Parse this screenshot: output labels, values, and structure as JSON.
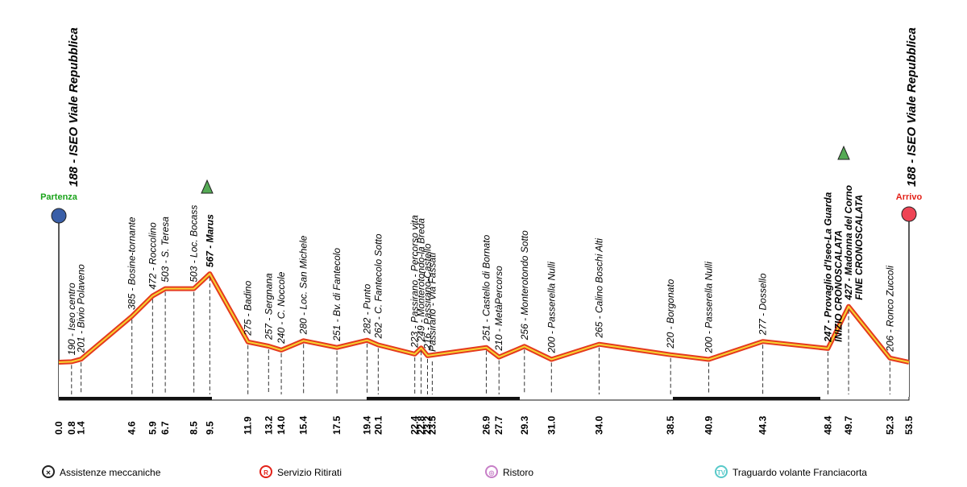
{
  "start": {
    "label": "188 - ISEO Viale Repubblica",
    "tag": "Partenza"
  },
  "finish": {
    "label": "188 - ISEO Viale Repubblica",
    "tag": "Arrivo"
  },
  "waypoints": [
    {
      "km": "0.0",
      "label": "188 - ISEO Viale Repubblica",
      "hidden": true
    },
    {
      "km": "0.8",
      "label": "190 - Iseo centro"
    },
    {
      "km": "1.4",
      "label": "201 - Bivio Polaveno"
    },
    {
      "km": "4.6",
      "label": "385 - Bosine-tornante"
    },
    {
      "km": "5.9",
      "label": "472 - Roccolino"
    },
    {
      "km": "6.7",
      "label": "503 - S. Teresa"
    },
    {
      "km": "8.5",
      "label": "503 - Loc. Bocass"
    },
    {
      "km": "9.5",
      "label": "567 - Marus",
      "bold": true
    },
    {
      "km": "11.9",
      "label": "275 - Badino"
    },
    {
      "km": "13.2",
      "label": "257 - Sergnana"
    },
    {
      "km": "14.0",
      "label": "240 - C. Noccole"
    },
    {
      "km": "15.4",
      "label": "280 - Loc. San Michele"
    },
    {
      "km": "17.5",
      "label": "251 - Bv. di Fantecolo"
    },
    {
      "km": "19.4",
      "label": "282 - Punto"
    },
    {
      "km": "20.1",
      "label": "262 - C. Fantecolo Sotto"
    },
    {
      "km": "22.4",
      "label": "223 - Passirano - Percorso vita"
    },
    {
      "km": "22.8",
      "label": "249 - Monterotondo-la Breda"
    },
    {
      "km": "23.2",
      "label": "216 - Passirano-Castello"
    },
    {
      "km": "23.5",
      "label": "Passirano - Via Fassati"
    },
    {
      "km": "26.9",
      "label": "251 - Castello di Bornato"
    },
    {
      "km": "27.7",
      "label": "210 - MetàPercorso"
    },
    {
      "km": "29.3",
      "label": "256 - Monterotondo Sotto"
    },
    {
      "km": "31.0",
      "label": "200 - Passerella Nulli"
    },
    {
      "km": "34.0",
      "label": "265 - Calino Boschi Alti"
    },
    {
      "km": "38.5",
      "label": "220 - Borgonato"
    },
    {
      "km": "40.9",
      "label": "200 - Passerella Nulli"
    },
    {
      "km": "44.3",
      "label": "277 - Dossello"
    },
    {
      "km": "48.4",
      "label": "247 - Provaglio d'Iseo-La Guarda",
      "note": "INIZIO CRONOSCALATA",
      "bold": true
    },
    {
      "km": "49.7",
      "label": "427 - Madonna del Corno",
      "note": "FINE CRONOSCALATA",
      "bold": true
    },
    {
      "km": "52.3",
      "label": "206 - Ronco Zuccoli"
    },
    {
      "km": "53.5",
      "label": "188 - ISEO Viale Repubblica",
      "hidden": true
    }
  ],
  "legend": [
    {
      "symbol": "✕",
      "label": "Assistenze meccaniche",
      "color": "#222"
    },
    {
      "symbol": "R",
      "label": "Servizio Ritirati",
      "color": "#e32219"
    },
    {
      "symbol": "◎",
      "label": "Ristoro",
      "color": "#c77fc7"
    },
    {
      "symbol": "TV",
      "label": "Traguardo volante Franciacorta",
      "color": "#58c9c9"
    }
  ]
}
